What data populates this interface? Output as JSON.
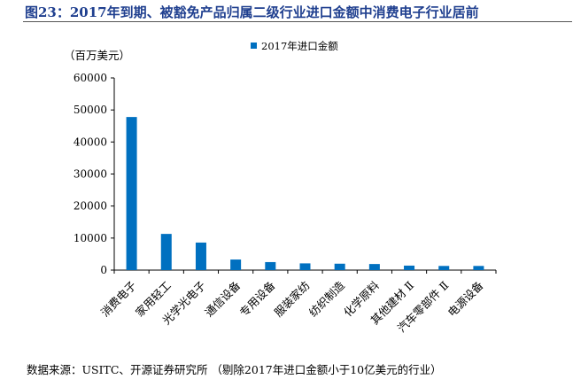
{
  "title": "图23：2017年到期、被豁免产品归属二级行业进口金额中消费电子行业居前",
  "source": "数据来源：USITC、开源证券研究所 （剔除2017年进口金额小于10亿美元的行业）",
  "chart_data": {
    "type": "bar",
    "title": "",
    "ylabel": "（百万美元）",
    "xlabel": "",
    "ylim": [
      0,
      60000
    ],
    "yticks": [
      0,
      10000,
      20000,
      30000,
      40000,
      50000,
      60000
    ],
    "grid": false,
    "legend_position": "top",
    "categories": [
      "消费电子",
      "家用轻工",
      "光学光电子",
      "通信设备",
      "专用设备",
      "服装家纺",
      "纺织制造",
      "化学原料",
      "其他建材 Ⅱ",
      "汽车零部件 Ⅱ",
      "电源设备"
    ],
    "series": [
      {
        "name": "2017年进口金额",
        "color": "#0070c0",
        "values": [
          47800,
          11300,
          8600,
          3300,
          2500,
          2100,
          2000,
          1900,
          1400,
          1300,
          1300
        ]
      }
    ]
  }
}
